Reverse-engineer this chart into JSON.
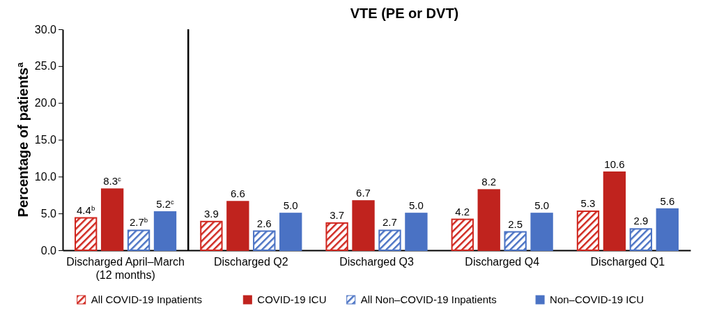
{
  "chart_data": {
    "type": "bar",
    "title": "VTE (PE or DVT)",
    "ylabel": "Percentage of patients$^{a}$",
    "categories": [
      "Discharged April–March\n(12 months)",
      "Discharged Q2",
      "Discharged Q3",
      "Discharged Q4",
      "Discharged Q1"
    ],
    "series": [
      {
        "name": "All COVID-19 Inpatients",
        "color": "#d0271f",
        "values": [
          4.4,
          3.9,
          3.7,
          4.2,
          5.3
        ],
        "value_labels": [
          "4.4$^{b}$",
          "3.9",
          "3.7",
          "4.2",
          "5.3"
        ]
      },
      {
        "name": "COVID-19 ICU",
        "color": "#c0231e",
        "values": [
          8.3,
          6.6,
          6.7,
          8.2,
          10.6
        ],
        "value_labels": [
          "8.3$^{c}$",
          "6.6",
          "6.7",
          "8.2",
          "10.6"
        ]
      },
      {
        "name": "All Non–COVID-19 Inpatients",
        "color": "#4a72c4",
        "values": [
          2.7,
          2.6,
          2.7,
          2.5,
          2.9
        ],
        "value_labels": [
          "2.7$^{b}$",
          "2.6",
          "2.7",
          "2.5",
          "2.9"
        ]
      },
      {
        "name": "Non–COVID-19 ICU",
        "color": "#4a72c4",
        "values": [
          5.2,
          5.0,
          5.0,
          5.0,
          5.6
        ],
        "value_labels": [
          "5.2$^{c}$",
          "5.0",
          "5.0",
          "5.0",
          "5.6"
        ]
      }
    ],
    "ylim": [
      0,
      30
    ],
    "yticks": [
      {
        "value": 0,
        "label": "0.0"
      },
      {
        "value": 5,
        "label": "5.0"
      },
      {
        "value": 10,
        "label": "10.0"
      },
      {
        "value": 15,
        "label": "15.0"
      },
      {
        "value": 20,
        "label": "20.0"
      },
      {
        "value": 25,
        "label": "25.0"
      },
      {
        "value": 30,
        "label": "30.0"
      }
    ],
    "grid": false,
    "legend": "bottom"
  }
}
